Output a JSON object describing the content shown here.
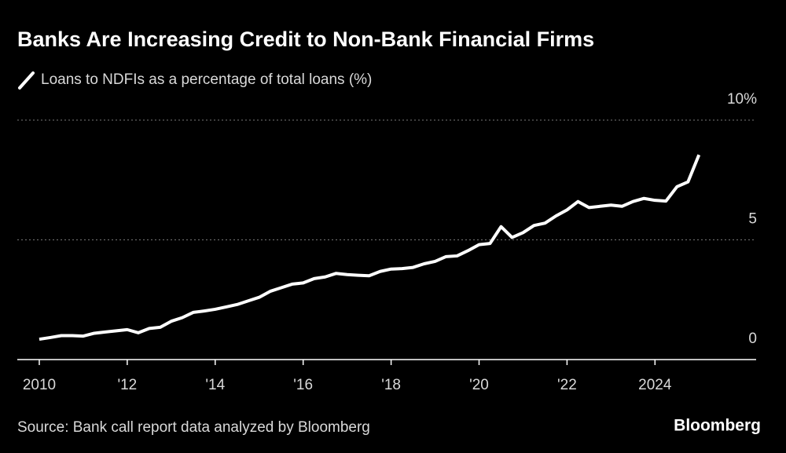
{
  "chart_data": {
    "type": "line",
    "title": "Banks Are Increasing Credit to Non-Bank Financial Firms",
    "source": "Source: Bank call report data analyzed by Bloomberg",
    "brand": "Bloomberg",
    "x": [
      2010,
      2010.25,
      2010.5,
      2010.75,
      2011,
      2011.25,
      2011.5,
      2011.75,
      2012,
      2012.25,
      2012.5,
      2012.75,
      2013,
      2013.25,
      2013.5,
      2013.75,
      2014,
      2014.25,
      2014.5,
      2014.75,
      2015,
      2015.25,
      2015.5,
      2015.75,
      2016,
      2016.25,
      2016.5,
      2016.75,
      2017,
      2017.25,
      2017.5,
      2017.75,
      2018,
      2018.25,
      2018.5,
      2018.75,
      2019,
      2019.25,
      2019.5,
      2019.75,
      2020,
      2020.25,
      2020.5,
      2020.75,
      2021,
      2021.25,
      2021.5,
      2021.75,
      2022,
      2022.25,
      2022.5,
      2022.75,
      2023,
      2023.25,
      2023.5,
      2023.75,
      2024,
      2024.25,
      2024.5,
      2024.75,
      2025
    ],
    "series": [
      {
        "name": "Loans to NDFIs as a percentage of total loans (%)",
        "color": "#ffffff",
        "values": [
          0.85,
          0.92,
          1.0,
          1.0,
          0.98,
          1.1,
          1.15,
          1.2,
          1.25,
          1.12,
          1.3,
          1.35,
          1.6,
          1.75,
          1.97,
          2.03,
          2.1,
          2.2,
          2.3,
          2.45,
          2.6,
          2.85,
          3.0,
          3.15,
          3.2,
          3.38,
          3.45,
          3.6,
          3.55,
          3.52,
          3.5,
          3.68,
          3.78,
          3.8,
          3.85,
          4.0,
          4.1,
          4.3,
          4.33,
          4.55,
          4.8,
          4.85,
          5.55,
          5.1,
          5.3,
          5.6,
          5.7,
          6.0,
          6.25,
          6.6,
          6.35,
          6.4,
          6.45,
          6.4,
          6.6,
          6.73,
          6.65,
          6.62,
          7.22,
          7.42,
          8.55
        ]
      }
    ],
    "xlim": [
      2009.5,
      2026.3
    ],
    "xticks": [
      2010,
      {
        "value": 2012,
        "label": "'12"
      },
      {
        "value": 2014,
        "label": "'14"
      },
      {
        "value": 2016,
        "label": "'16"
      },
      {
        "value": 2018,
        "label": "'18"
      },
      {
        "value": 2020,
        "label": "'20"
      },
      {
        "value": 2022,
        "label": "'22"
      },
      2024
    ],
    "ylim": [
      0,
      10
    ],
    "yticks": [
      0,
      5,
      {
        "value": 10,
        "label": "10%"
      }
    ],
    "grid": true
  }
}
